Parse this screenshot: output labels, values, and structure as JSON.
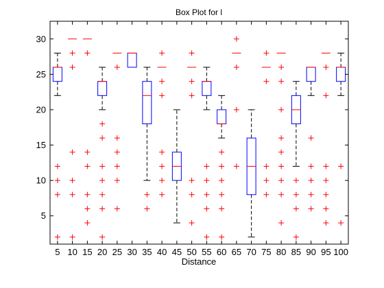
{
  "chart_data": {
    "type": "box",
    "title": "Box Plot for l",
    "xlabel": "Distance",
    "ylabel": "",
    "ylim": [
      1,
      32.5
    ],
    "yticks": [
      5,
      10,
      15,
      20,
      25,
      30
    ],
    "grid": false,
    "legend": "none",
    "colors": {
      "box": "#0000ff",
      "median": "#ff0000",
      "whisker": "#000000",
      "outlier": "#ff0000"
    },
    "categories": [
      "5",
      "10",
      "15",
      "20",
      "25",
      "30",
      "35",
      "40",
      "45",
      "50",
      "55",
      "60",
      "65",
      "70",
      "75",
      "80",
      "85",
      "90",
      "95",
      "100"
    ],
    "boxes": [
      {
        "q1": 24,
        "median": 26,
        "q3": 26,
        "lo": 22,
        "hi": 28,
        "outliers": [
          2,
          8,
          10,
          12
        ],
        "ticks": [
          "-"
        ]
      },
      {
        "q1": 30,
        "median": 30,
        "q3": 30,
        "lo": 30,
        "hi": 30,
        "outliers": [
          2,
          8,
          10,
          14,
          26,
          28
        ]
      },
      {
        "q1": 30,
        "median": 30,
        "q3": 30,
        "lo": 30,
        "hi": 30,
        "outliers": [
          4,
          6,
          8,
          12,
          14,
          28
        ]
      },
      {
        "q1": 22,
        "median": 24,
        "q3": 24,
        "lo": 20,
        "hi": 26,
        "outliers": [
          2,
          6,
          8,
          10,
          12,
          16,
          18
        ]
      },
      {
        "q1": 28,
        "median": 28,
        "q3": 28,
        "lo": 28,
        "hi": 28,
        "outliers": [
          6,
          10,
          12,
          14,
          16,
          26
        ]
      },
      {
        "q1": 26,
        "median": 28,
        "q3": 28,
        "lo": 26,
        "hi": 28,
        "outliers": []
      },
      {
        "q1": 18,
        "median": 22,
        "q3": 24,
        "lo": 10,
        "hi": 26,
        "outliers": [
          6,
          8
        ]
      },
      {
        "q1": 26,
        "median": 26,
        "q3": 26,
        "lo": 26,
        "hi": 26,
        "outliers": [
          8,
          10,
          12,
          14,
          22,
          24,
          28
        ]
      },
      {
        "q1": 10,
        "median": 12,
        "q3": 14,
        "lo": 4,
        "hi": 20,
        "outliers": []
      },
      {
        "q1": 26,
        "median": 26,
        "q3": 26,
        "lo": 26,
        "hi": 26,
        "outliers": [
          4,
          8,
          10,
          22,
          24,
          28
        ]
      },
      {
        "q1": 22,
        "median": 24,
        "q3": 24,
        "lo": 20,
        "hi": 26,
        "outliers": [
          2,
          6,
          8,
          10,
          12
        ]
      },
      {
        "q1": 18,
        "median": 18,
        "q3": 20,
        "lo": 16,
        "hi": 22,
        "outliers": [
          2,
          6,
          8,
          10,
          12,
          14
        ]
      },
      {
        "q1": 28,
        "median": 28,
        "q3": 28,
        "lo": 28,
        "hi": 28,
        "outliers": [
          12,
          20,
          26,
          30
        ]
      },
      {
        "q1": 8,
        "median": 12,
        "q3": 16,
        "lo": 2,
        "hi": 20,
        "outliers": []
      },
      {
        "q1": 26,
        "median": 26,
        "q3": 26,
        "lo": 26,
        "hi": 26,
        "outliers": [
          8,
          10,
          12,
          24,
          28
        ]
      },
      {
        "q1": 28,
        "median": 28,
        "q3": 28,
        "lo": 28,
        "hi": 28,
        "outliers": [
          4,
          8,
          10,
          12,
          14,
          16,
          20,
          24,
          26
        ]
      },
      {
        "q1": 18,
        "median": 20,
        "q3": 22,
        "lo": 12,
        "hi": 24,
        "outliers": [
          2,
          6,
          8,
          10
        ]
      },
      {
        "q1": 24,
        "median": 26,
        "q3": 26,
        "lo": 22,
        "hi": 26,
        "outliers": [
          6,
          8,
          10,
          12,
          16
        ]
      },
      {
        "q1": 28,
        "median": 28,
        "q3": 28,
        "lo": 28,
        "hi": 28,
        "outliers": [
          4,
          6,
          8,
          10,
          12,
          22,
          26
        ]
      },
      {
        "q1": 24,
        "median": 26,
        "q3": 26,
        "lo": 22,
        "hi": 28,
        "outliers": [
          4,
          12
        ]
      }
    ]
  }
}
